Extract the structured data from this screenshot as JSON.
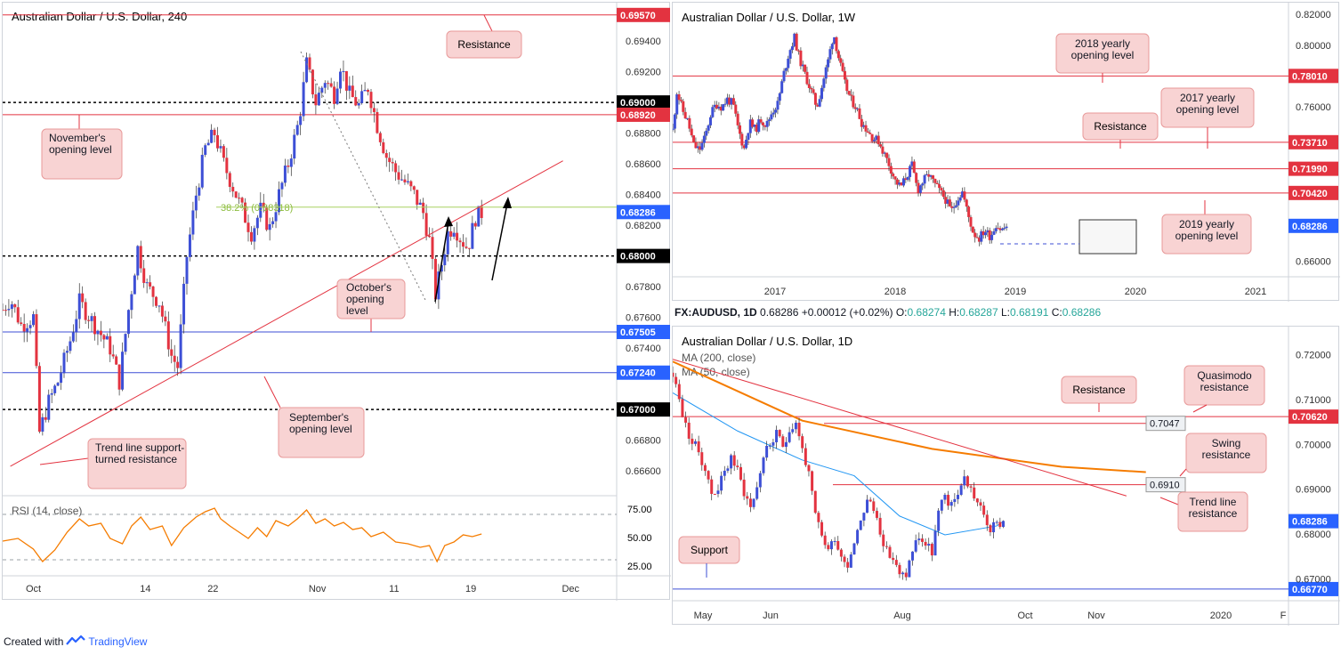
{
  "footer": {
    "created_with": "Created with",
    "brand": "TradingView"
  },
  "colors": {
    "resistance": "#e33340",
    "support": "#3d4fd6",
    "price_tag_blue": "#2962ff",
    "rsi": "#f57c00",
    "ma200": "#f57c00",
    "ma50": "#2196f3",
    "fib": "#a8d060",
    "up_candle": "#3d4fd6",
    "down_candle": "#e33340",
    "callout_bg": "#f8d3d3",
    "callout_border": "#e89a9a"
  },
  "chart_data": [
    {
      "id": "h4",
      "type": "candlestick",
      "title": "Australian Dollar / U.S. Dollar, 240",
      "ylim": [
        0.6645,
        0.6965
      ],
      "xlim": [
        0,
        40
      ],
      "x_ticks": [
        {
          "x": 2,
          "label": "Oct"
        },
        {
          "x": 9.3,
          "label": "14"
        },
        {
          "x": 13.7,
          "label": "22"
        },
        {
          "x": 20.5,
          "label": "Nov"
        },
        {
          "x": 25.5,
          "label": "11"
        },
        {
          "x": 30.5,
          "label": "19"
        },
        {
          "x": 37,
          "label": "Dec"
        }
      ],
      "y_ticks": [
        "0.69400",
        "0.69200",
        "0.68800",
        "0.68600",
        "0.68400",
        "0.68200",
        "0.67800",
        "0.67600",
        "0.67400",
        "0.66800",
        "0.66600"
      ],
      "price_path": [
        [
          0,
          0.6765
        ],
        [
          0.5,
          0.6772
        ],
        [
          1.2,
          0.6755
        ],
        [
          2.0,
          0.676
        ],
        [
          2.4,
          0.6685
        ],
        [
          3.0,
          0.6705
        ],
        [
          3.6,
          0.6718
        ],
        [
          4.4,
          0.6745
        ],
        [
          5.0,
          0.677
        ],
        [
          6.0,
          0.6755
        ],
        [
          7.0,
          0.674
        ],
        [
          7.6,
          0.6718
        ],
        [
          8.2,
          0.6765
        ],
        [
          8.8,
          0.6805
        ],
        [
          9.4,
          0.678
        ],
        [
          10.2,
          0.677
        ],
        [
          11.0,
          0.6735
        ],
        [
          11.4,
          0.6728
        ],
        [
          12.0,
          0.68
        ],
        [
          12.6,
          0.684
        ],
        [
          13.2,
          0.687
        ],
        [
          13.8,
          0.688
        ],
        [
          14.4,
          0.686
        ],
        [
          15.0,
          0.6845
        ],
        [
          15.6,
          0.683
        ],
        [
          16.2,
          0.6815
        ],
        [
          16.8,
          0.683
        ],
        [
          17.4,
          0.6818
        ],
        [
          18.0,
          0.684
        ],
        [
          18.6,
          0.686
        ],
        [
          19.3,
          0.6888
        ],
        [
          19.8,
          0.6925
        ],
        [
          20.4,
          0.69
        ],
        [
          21.0,
          0.6915
        ],
        [
          21.6,
          0.6905
        ],
        [
          22.0,
          0.6925
        ],
        [
          22.6,
          0.6905
        ],
        [
          23.2,
          0.6898
        ],
        [
          23.8,
          0.691
        ],
        [
          24.4,
          0.6885
        ],
        [
          25.0,
          0.6865
        ],
        [
          25.6,
          0.6855
        ],
        [
          26.2,
          0.6848
        ],
        [
          26.8,
          0.684
        ],
        [
          27.4,
          0.6828
        ],
        [
          27.8,
          0.681
        ],
        [
          28.2,
          0.6775
        ],
        [
          28.6,
          0.6795
        ],
        [
          29.0,
          0.6815
        ],
        [
          29.4,
          0.682
        ],
        [
          29.8,
          0.6812
        ],
        [
          30.3,
          0.6805
        ],
        [
          30.8,
          0.6825
        ],
        [
          31.2,
          0.6828
        ]
      ],
      "levels": [
        {
          "price": 0.6957,
          "label": "0.69570",
          "style": "red-solid"
        },
        {
          "price": 0.69,
          "label": "0.69000",
          "style": "black-dashed"
        },
        {
          "price": 0.6892,
          "label": "0.68920",
          "style": "red-solid"
        },
        {
          "price": 0.68286,
          "label": "0.68286",
          "style": "price"
        },
        {
          "price": 0.68,
          "label": "0.68000",
          "style": "black-dashed"
        },
        {
          "price": 0.67505,
          "label": "0.67505",
          "style": "blue-solid"
        },
        {
          "price": 0.6724,
          "label": "0.67240",
          "style": "blue-solid"
        },
        {
          "price": 0.67,
          "label": "0.67000",
          "style": "black-dashed"
        }
      ],
      "fib_label": "38.2% (0.68318)",
      "fib_price": 0.68318,
      "trendline": [
        [
          0.5,
          0.6663
        ],
        [
          36.5,
          0.6862
        ]
      ],
      "callouts": [
        "Resistance",
        "November's opening level",
        "October's opening level",
        "September's opening level",
        "Trend line support-turned resistance"
      ],
      "rsi": {
        "label": "RSI (14, close)",
        "ticks": [
          "75.00",
          "50.00",
          "25.00"
        ],
        "upper": 70,
        "lower": 30,
        "values": [
          [
            0,
            45
          ],
          [
            1,
            48
          ],
          [
            2,
            36
          ],
          [
            2.6,
            22
          ],
          [
            3.4,
            35
          ],
          [
            4.2,
            55
          ],
          [
            5.0,
            70
          ],
          [
            5.6,
            62
          ],
          [
            6.4,
            65
          ],
          [
            7.0,
            48
          ],
          [
            7.8,
            42
          ],
          [
            8.4,
            62
          ],
          [
            9.0,
            72
          ],
          [
            9.6,
            58
          ],
          [
            10.4,
            62
          ],
          [
            11.0,
            40
          ],
          [
            11.8,
            60
          ],
          [
            12.6,
            72
          ],
          [
            13.2,
            78
          ],
          [
            13.8,
            82
          ],
          [
            14.2,
            70
          ],
          [
            14.8,
            62
          ],
          [
            15.4,
            55
          ],
          [
            16.0,
            48
          ],
          [
            16.6,
            60
          ],
          [
            17.2,
            50
          ],
          [
            17.8,
            68
          ],
          [
            18.6,
            62
          ],
          [
            19.2,
            70
          ],
          [
            19.8,
            80
          ],
          [
            20.4,
            65
          ],
          [
            21.0,
            70
          ],
          [
            21.6,
            62
          ],
          [
            22.2,
            66
          ],
          [
            22.8,
            58
          ],
          [
            23.4,
            60
          ],
          [
            24.0,
            50
          ],
          [
            24.8,
            55
          ],
          [
            25.6,
            44
          ],
          [
            26.4,
            42
          ],
          [
            27.2,
            38
          ],
          [
            27.8,
            40
          ],
          [
            28.3,
            22
          ],
          [
            28.8,
            40
          ],
          [
            29.4,
            44
          ],
          [
            30.0,
            52
          ],
          [
            30.6,
            50
          ],
          [
            31.2,
            53
          ]
        ]
      }
    },
    {
      "id": "w1",
      "type": "candlestick",
      "title": "Australian Dollar / U.S. Dollar, 1W",
      "ylim": [
        0.651,
        0.823
      ],
      "x_ticks": [
        "2017",
        "2018",
        "2019",
        "2020",
        "2021"
      ],
      "y_ticks": [
        "0.82000",
        "0.80000",
        "0.76000",
        "0.66000"
      ],
      "price_path": [
        [
          0,
          0.745
        ],
        [
          0.3,
          0.77
        ],
        [
          0.7,
          0.758
        ],
        [
          1.1,
          0.75
        ],
        [
          1.5,
          0.735
        ],
        [
          1.9,
          0.732
        ],
        [
          2.3,
          0.74
        ],
        [
          2.7,
          0.755
        ],
        [
          3.1,
          0.762
        ],
        [
          3.5,
          0.76
        ],
        [
          3.9,
          0.765
        ],
        [
          4.3,
          0.762
        ],
        [
          4.7,
          0.745
        ],
        [
          5.1,
          0.733
        ],
        [
          5.5,
          0.75
        ],
        [
          5.9,
          0.745
        ],
        [
          6.3,
          0.752
        ],
        [
          6.7,
          0.748
        ],
        [
          7.1,
          0.757
        ],
        [
          7.5,
          0.762
        ],
        [
          7.9,
          0.78
        ],
        [
          8.3,
          0.795
        ],
        [
          8.7,
          0.805
        ],
        [
          9.1,
          0.79
        ],
        [
          9.5,
          0.78
        ],
        [
          9.9,
          0.77
        ],
        [
          10.3,
          0.76
        ],
        [
          10.7,
          0.775
        ],
        [
          11.1,
          0.79
        ],
        [
          11.5,
          0.808
        ],
        [
          11.9,
          0.79
        ],
        [
          12.3,
          0.775
        ],
        [
          12.7,
          0.765
        ],
        [
          13.1,
          0.76
        ],
        [
          13.5,
          0.75
        ],
        [
          13.9,
          0.745
        ],
        [
          14.3,
          0.74
        ],
        [
          14.7,
          0.738
        ],
        [
          15.1,
          0.73
        ],
        [
          15.5,
          0.722
        ],
        [
          15.9,
          0.712
        ],
        [
          16.3,
          0.708
        ],
        [
          16.7,
          0.715
        ],
        [
          17.1,
          0.722
        ],
        [
          17.5,
          0.706
        ],
        [
          17.9,
          0.712
        ],
        [
          18.3,
          0.716
        ],
        [
          18.7,
          0.71
        ],
        [
          19.1,
          0.705
        ],
        [
          19.5,
          0.7
        ],
        [
          19.9,
          0.692
        ],
        [
          20.3,
          0.7
        ],
        [
          20.7,
          0.705
        ],
        [
          21.1,
          0.69
        ],
        [
          21.5,
          0.678
        ],
        [
          21.9,
          0.675
        ],
        [
          22.3,
          0.68
        ],
        [
          22.7,
          0.676
        ],
        [
          23.1,
          0.684
        ],
        [
          23.5,
          0.68
        ],
        [
          23.9,
          0.683
        ]
      ],
      "x_span": 44,
      "levels": [
        {
          "price": 0.7801,
          "label": "0.78010"
        },
        {
          "price": 0.7371,
          "label": "0.73710"
        },
        {
          "price": 0.7199,
          "label": "0.71990"
        },
        {
          "price": 0.7042,
          "label": "0.70420"
        },
        {
          "price": 0.68286,
          "label": "0.68286",
          "style": "price"
        }
      ],
      "callouts": [
        "2018 yearly opening level",
        "2017 yearly opening level",
        "Resistance",
        "2019 yearly opening level"
      ]
    },
    {
      "id": "d1",
      "type": "candlestick",
      "title": "Australian Dollar / U.S. Dollar, 1D",
      "ohlc_header": {
        "symbol": "FX:AUDUSD, 1D",
        "last": "0.68286",
        "change": "+0.00012 (+0.02%)",
        "o_label": "O:",
        "o": "0.68274",
        "h_label": "H:",
        "h": "0.68287",
        "l_label": "L:",
        "l": "0.68191",
        "c_label": "C:",
        "c": "0.68286"
      },
      "ylim": [
        0.6655,
        0.7255
      ],
      "x_ticks": [
        "May",
        "Jun",
        "Aug",
        "Oct",
        "Nov",
        "2020",
        "F"
      ],
      "y_ticks": [
        "0.72000",
        "0.71000",
        "0.70000",
        "0.69000",
        "0.68000",
        "0.67000"
      ],
      "ma_labels": [
        "MA (200, close)",
        "MA (50, close)"
      ],
      "price_path": [
        [
          0,
          0.716
        ],
        [
          1,
          0.71
        ],
        [
          2,
          0.704
        ],
        [
          3,
          0.7005
        ],
        [
          4,
          0.6985
        ],
        [
          5,
          0.6945
        ],
        [
          6,
          0.689
        ],
        [
          7,
          0.6905
        ],
        [
          8,
          0.6935
        ],
        [
          9,
          0.6975
        ],
        [
          10,
          0.694
        ],
        [
          11,
          0.6895
        ],
        [
          12,
          0.686
        ],
        [
          13,
          0.6905
        ],
        [
          14,
          0.6975
        ],
        [
          15,
          0.7
        ],
        [
          16,
          0.702
        ],
        [
          17,
          0.6995
        ],
        [
          18,
          0.7035
        ],
        [
          19,
          0.705
        ],
        [
          20,
          0.699
        ],
        [
          21,
          0.693
        ],
        [
          22,
          0.684
        ],
        [
          23,
          0.6795
        ],
        [
          24,
          0.6765
        ],
        [
          25,
          0.6795
        ],
        [
          26,
          0.675
        ],
        [
          27,
          0.6735
        ],
        [
          28,
          0.6785
        ],
        [
          29,
          0.6835
        ],
        [
          30,
          0.6875
        ],
        [
          31,
          0.6855
        ],
        [
          32,
          0.681
        ],
        [
          33,
          0.676
        ],
        [
          34,
          0.6745
        ],
        [
          35,
          0.6705
        ],
        [
          36,
          0.671
        ],
        [
          37,
          0.6765
        ],
        [
          38,
          0.6795
        ],
        [
          39,
          0.6775
        ],
        [
          40,
          0.676
        ],
        [
          41,
          0.6845
        ],
        [
          42,
          0.6885
        ],
        [
          43,
          0.686
        ],
        [
          44,
          0.6895
        ],
        [
          45,
          0.6925
        ],
        [
          46,
          0.69
        ],
        [
          47,
          0.687
        ],
        [
          48,
          0.684
        ],
        [
          49,
          0.681
        ],
        [
          50,
          0.682
        ],
        [
          51,
          0.6829
        ]
      ],
      "x_span": 95,
      "ma200": [
        [
          0,
          0.7185
        ],
        [
          20,
          0.7053
        ],
        [
          40,
          0.699
        ],
        [
          60,
          0.695
        ],
        [
          73,
          0.6938
        ]
      ],
      "ma50": [
        [
          0,
          0.7115
        ],
        [
          10,
          0.703
        ],
        [
          20,
          0.6965
        ],
        [
          28,
          0.693
        ],
        [
          35,
          0.684
        ],
        [
          42,
          0.6798
        ],
        [
          50,
          0.6818
        ],
        [
          51,
          0.6828
        ]
      ],
      "trendline": [
        [
          0,
          0.719
        ],
        [
          70,
          0.6885
        ]
      ],
      "levels": [
        {
          "price": 0.7062,
          "label": "0.70620"
        },
        {
          "price": 0.691,
          "label": "0.6910",
          "style": "inline"
        },
        {
          "price": 0.7047,
          "label": "0.7047",
          "style": "inline"
        },
        {
          "price": 0.68286,
          "label": "0.68286",
          "style": "price"
        },
        {
          "price": 0.6677,
          "label": "0.66770",
          "style": "blue"
        }
      ],
      "callouts": [
        "Resistance",
        "Quasimodo resistance",
        "Swing resistance",
        "Trend line resistance",
        "Support"
      ]
    }
  ]
}
